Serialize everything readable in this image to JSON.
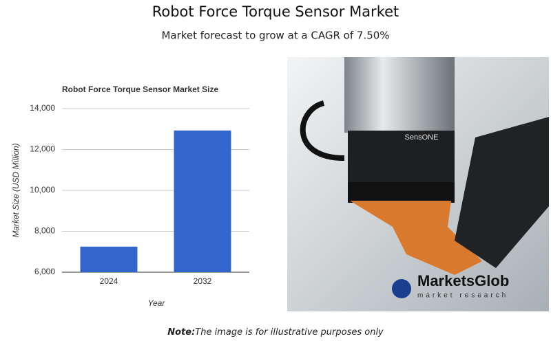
{
  "title": "Robot Force Torque Sensor Market",
  "subtitle": "Market forecast to grow at a CAGR of 7.50%",
  "chart_data": {
    "type": "bar",
    "title": "Robot Force Torque Sensor Market Size",
    "categories": [
      "2024",
      "2032"
    ],
    "values": [
      7250,
      12930
    ],
    "color": "#3366cc",
    "ylim": [
      6000,
      14000
    ],
    "yticks": [
      {
        "value": 6000,
        "label": "6,000"
      },
      {
        "value": 8000,
        "label": "8,000"
      },
      {
        "value": 10000,
        "label": "10,000"
      },
      {
        "value": 12000,
        "label": "12,000"
      },
      {
        "value": 14000,
        "label": "14,000"
      }
    ],
    "xlabel": "Year",
    "ylabel": "Market Size (USD Million)",
    "grid": true
  },
  "image": {
    "brand": "SensONE",
    "logo": "MarketsGlob",
    "logo_tagline": "market research"
  },
  "note": {
    "label": "Note:",
    "text": "The image is for illustrative purposes only"
  }
}
